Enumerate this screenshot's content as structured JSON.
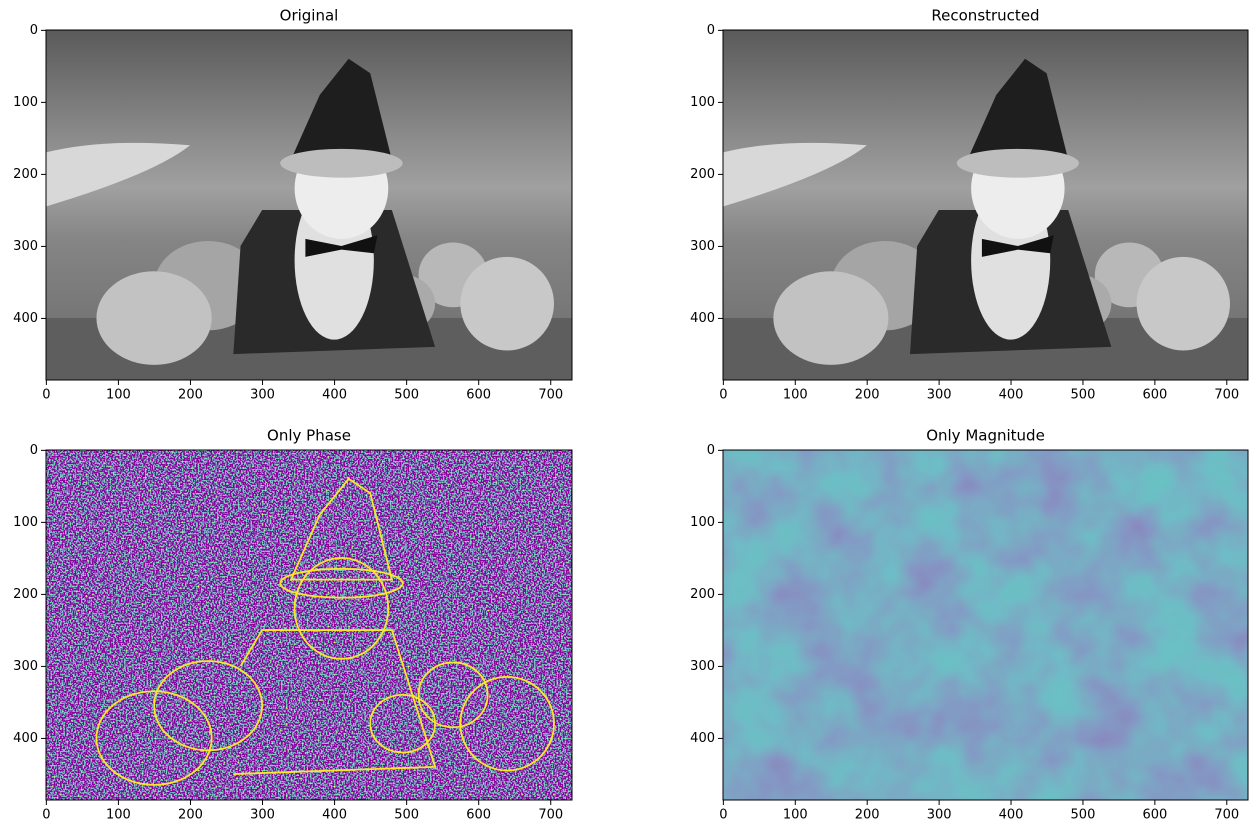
{
  "chart_data": [
    {
      "type": "image",
      "title": "Original",
      "cmap": "gray",
      "xlim": [
        -0.5,
        729.5
      ],
      "ylim": [
        485.5,
        -0.5
      ],
      "xticks": [
        0,
        100,
        200,
        300,
        400,
        500,
        600,
        700
      ],
      "yticks": [
        0,
        100,
        200,
        300,
        400
      ]
    },
    {
      "type": "image",
      "title": "Reconstructed",
      "cmap": "gray",
      "xlim": [
        -0.5,
        729.5
      ],
      "ylim": [
        485.5,
        -0.5
      ],
      "xticks": [
        0,
        100,
        200,
        300,
        400,
        500,
        600,
        700
      ],
      "yticks": [
        0,
        100,
        200,
        300,
        400
      ]
    },
    {
      "type": "image",
      "title": "Only Phase",
      "cmap": "viridis-phase",
      "xlim": [
        -0.5,
        729.5
      ],
      "ylim": [
        485.5,
        -0.5
      ],
      "xticks": [
        0,
        100,
        200,
        300,
        400,
        500,
        600,
        700
      ],
      "yticks": [
        0,
        100,
        200,
        300,
        400
      ]
    },
    {
      "type": "image",
      "title": "Only Magnitude",
      "cmap": "viridis-magnitude",
      "xlim": [
        -0.5,
        729.5
      ],
      "ylim": [
        485.5,
        -0.5
      ],
      "xticks": [
        0,
        100,
        200,
        300,
        400,
        500,
        600,
        700
      ],
      "yticks": [
        0,
        100,
        200,
        300,
        400
      ]
    }
  ]
}
